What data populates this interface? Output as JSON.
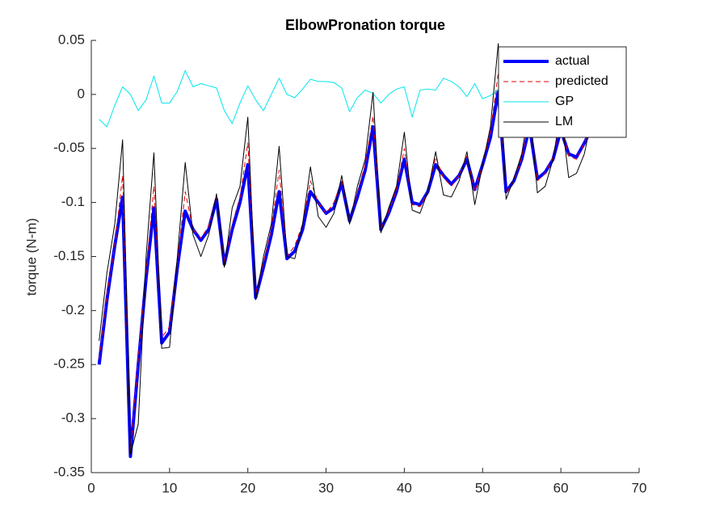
{
  "chart_data": {
    "type": "line",
    "title": "ElbowPronation torque",
    "ylabel": "torque (N-m)",
    "x": [
      1,
      2,
      3,
      4,
      5,
      6,
      7,
      8,
      9,
      10,
      11,
      12,
      13,
      14,
      15,
      16,
      17,
      18,
      19,
      20,
      21,
      22,
      23,
      24,
      25,
      26,
      27,
      28,
      29,
      30,
      31,
      32,
      33,
      34,
      35,
      36,
      37,
      38,
      39,
      40,
      41,
      42,
      43,
      44,
      45,
      46,
      47,
      48,
      49,
      50,
      51,
      52,
      53,
      54,
      55,
      56,
      57,
      58,
      59,
      60,
      61,
      62,
      63,
      64
    ],
    "series": [
      {
        "name": "actual",
        "color": "#0000ff",
        "values": [
          -0.25,
          -0.19,
          -0.14,
          -0.095,
          -0.335,
          -0.25,
          -0.17,
          -0.105,
          -0.23,
          -0.22,
          -0.16,
          -0.108,
          -0.125,
          -0.135,
          -0.125,
          -0.097,
          -0.157,
          -0.125,
          -0.1,
          -0.065,
          -0.188,
          -0.16,
          -0.13,
          -0.09,
          -0.152,
          -0.145,
          -0.125,
          -0.09,
          -0.1,
          -0.11,
          -0.105,
          -0.082,
          -0.117,
          -0.095,
          -0.07,
          -0.03,
          -0.125,
          -0.11,
          -0.09,
          -0.06,
          -0.1,
          -0.102,
          -0.09,
          -0.065,
          -0.075,
          -0.083,
          -0.075,
          -0.06,
          -0.088,
          -0.065,
          -0.04,
          0.003,
          -0.09,
          -0.08,
          -0.06,
          -0.03,
          -0.078,
          -0.072,
          -0.06,
          -0.033,
          -0.055,
          -0.058,
          -0.045,
          -0.03
        ]
      },
      {
        "name": "predicted",
        "color": "#e00000",
        "values": [
          -0.245,
          -0.185,
          -0.14,
          -0.075,
          -0.33,
          -0.245,
          -0.165,
          -0.085,
          -0.225,
          -0.215,
          -0.155,
          -0.09,
          -0.125,
          -0.133,
          -0.122,
          -0.095,
          -0.155,
          -0.12,
          -0.095,
          -0.045,
          -0.185,
          -0.155,
          -0.125,
          -0.07,
          -0.15,
          -0.14,
          -0.12,
          -0.08,
          -0.1,
          -0.11,
          -0.1,
          -0.08,
          -0.118,
          -0.09,
          -0.065,
          -0.02,
          -0.125,
          -0.108,
          -0.088,
          -0.05,
          -0.102,
          -0.104,
          -0.09,
          -0.058,
          -0.077,
          -0.085,
          -0.075,
          -0.057,
          -0.09,
          -0.065,
          -0.035,
          0.02,
          -0.092,
          -0.08,
          -0.058,
          -0.02,
          -0.08,
          -0.073,
          -0.058,
          -0.025,
          -0.057,
          -0.06,
          -0.045,
          -0.025
        ]
      },
      {
        "name": "GP",
        "color": "#00e5ee",
        "values": [
          -0.023,
          -0.03,
          -0.01,
          0.007,
          0,
          -0.015,
          -0.005,
          0.017,
          -0.008,
          -0.008,
          0.003,
          0.022,
          0.007,
          0.01,
          0.008,
          0.006,
          -0.015,
          -0.027,
          -0.008,
          0.008,
          -0.005,
          -0.015,
          0,
          0.015,
          0,
          -0.003,
          0.005,
          0.014,
          0.012,
          0.012,
          0.011,
          0.006,
          -0.016,
          -0.003,
          0.004,
          0.001,
          -0.008,
          0,
          0.005,
          0.007,
          -0.021,
          0.004,
          0.005,
          0.004,
          0.015,
          0.012,
          0.007,
          -0.002,
          0.01,
          -0.004,
          -0.001,
          0.004,
          0.002,
          0.005,
          0.003,
          0.008,
          0.004,
          0.006,
          0.002,
          0.006,
          0.003,
          0.005,
          0.004,
          0.006
        ]
      },
      {
        "name": "LM",
        "color": "#000000",
        "values": [
          -0.228,
          -0.165,
          -0.12,
          -0.042,
          -0.333,
          -0.305,
          -0.15,
          -0.054,
          -0.235,
          -0.234,
          -0.15,
          -0.063,
          -0.13,
          -0.15,
          -0.13,
          -0.092,
          -0.16,
          -0.105,
          -0.085,
          -0.021,
          -0.19,
          -0.15,
          -0.12,
          -0.048,
          -0.15,
          -0.152,
          -0.12,
          -0.067,
          -0.113,
          -0.123,
          -0.11,
          -0.075,
          -0.12,
          -0.085,
          -0.06,
          0.002,
          -0.128,
          -0.105,
          -0.085,
          -0.035,
          -0.107,
          -0.11,
          -0.09,
          -0.053,
          -0.093,
          -0.095,
          -0.08,
          -0.053,
          -0.102,
          -0.065,
          -0.03,
          0.047,
          -0.097,
          -0.078,
          -0.055,
          -0.01,
          -0.091,
          -0.085,
          -0.06,
          -0.015,
          -0.077,
          -0.073,
          -0.055,
          -0.02
        ]
      }
    ],
    "xlim": [
      0,
      70
    ],
    "xticks": [
      0,
      10,
      20,
      30,
      40,
      50,
      60,
      70
    ],
    "ylim": [
      -0.35,
      0.05
    ],
    "yticks": [
      -0.35,
      -0.3,
      -0.25,
      -0.2,
      -0.15,
      -0.1,
      -0.05,
      0,
      0.05
    ],
    "legend": "northeast"
  }
}
